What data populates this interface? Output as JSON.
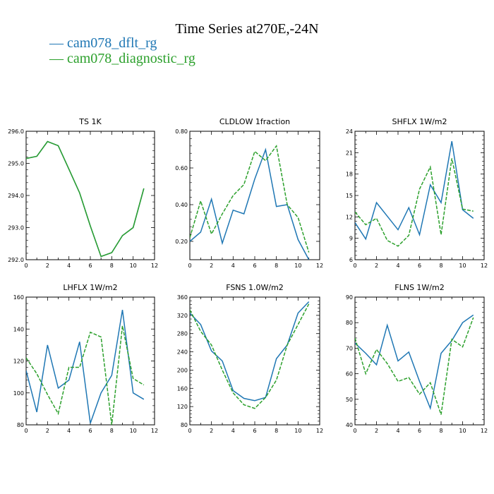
{
  "title": "Time Series at270E,-24N",
  "legend": [
    {
      "label": "— cam078_dflt_rg",
      "color": "#1f77b4"
    },
    {
      "label": "— cam078_diagnostic_rg",
      "color": "#2ca02c"
    }
  ],
  "chart_data": [
    {
      "type": "line",
      "title": "TS   1K",
      "x": [
        0,
        1,
        2,
        3,
        4,
        5,
        6,
        7,
        8,
        9,
        10,
        11
      ],
      "xlim": [
        0,
        12
      ],
      "xticks": [
        0,
        2,
        4,
        6,
        8,
        10,
        12
      ],
      "ylim": [
        292,
        296
      ],
      "yticks": [
        "292.0",
        "293.0",
        "294.0",
        "295.0",
        "296.0"
      ],
      "series": [
        {
          "name": "cam078_dflt_rg",
          "color": "#1f77b4",
          "dashed": false,
          "values": [
            295.15,
            295.22,
            295.68,
            295.55,
            294.82,
            294.08,
            293.05,
            292.1,
            292.22,
            292.75,
            293.0,
            294.22
          ]
        },
        {
          "name": "cam078_diagnostic_rg",
          "color": "#2ca02c",
          "dashed": false,
          "values": [
            295.15,
            295.22,
            295.68,
            295.55,
            294.82,
            294.08,
            293.05,
            292.1,
            292.22,
            292.75,
            293.0,
            294.22
          ]
        }
      ]
    },
    {
      "type": "line",
      "title": "CLDLOW   1fraction",
      "x": [
        0,
        1,
        2,
        3,
        4,
        5,
        6,
        7,
        8,
        9,
        10,
        11
      ],
      "xlim": [
        0,
        12
      ],
      "xticks": [
        0,
        2,
        4,
        6,
        8,
        10,
        12
      ],
      "ylim": [
        0.1,
        0.8
      ],
      "yticks": [
        "0.20",
        "0.40",
        "0.60",
        "0.80"
      ],
      "series": [
        {
          "name": "cam078_dflt_rg",
          "color": "#1f77b4",
          "dashed": false,
          "values": [
            0.2,
            0.25,
            0.43,
            0.19,
            0.37,
            0.35,
            0.54,
            0.7,
            0.39,
            0.4,
            0.21,
            0.1
          ]
        },
        {
          "name": "cam078_diagnostic_rg",
          "color": "#2ca02c",
          "dashed": true,
          "values": [
            0.22,
            0.42,
            0.24,
            0.35,
            0.45,
            0.51,
            0.69,
            0.64,
            0.72,
            0.4,
            0.33,
            0.14
          ]
        }
      ]
    },
    {
      "type": "line",
      "title": "SHFLX   1W/m2",
      "x": [
        0,
        1,
        2,
        3,
        4,
        5,
        6,
        7,
        8,
        9,
        10,
        11
      ],
      "xlim": [
        0,
        12
      ],
      "xticks": [
        0,
        2,
        4,
        6,
        8,
        10,
        12
      ],
      "ylim": [
        6,
        24
      ],
      "yticks": [
        "6",
        "9",
        "12",
        "15",
        "18",
        "21",
        "24"
      ],
      "series": [
        {
          "name": "cam078_dflt_rg",
          "color": "#1f77b4",
          "dashed": false,
          "values": [
            11.2,
            8.9,
            14.0,
            12.1,
            10.2,
            13.3,
            9.5,
            16.5,
            14.0,
            22.6,
            13.0,
            11.8
          ]
        },
        {
          "name": "cam078_diagnostic_rg",
          "color": "#2ca02c",
          "dashed": true,
          "values": [
            12.7,
            10.9,
            11.8,
            8.7,
            7.9,
            9.4,
            15.9,
            19.0,
            9.5,
            20.2,
            13.1,
            12.8
          ]
        }
      ]
    },
    {
      "type": "line",
      "title": "LHFLX   1W/m2",
      "x": [
        0,
        1,
        2,
        3,
        4,
        5,
        6,
        7,
        8,
        9,
        10,
        11
      ],
      "xlim": [
        0,
        12
      ],
      "xticks": [
        0,
        2,
        4,
        6,
        8,
        10,
        12
      ],
      "ylim": [
        80,
        160
      ],
      "yticks": [
        "80",
        "100",
        "120",
        "140",
        "160"
      ],
      "series": [
        {
          "name": "cam078_dflt_rg",
          "color": "#1f77b4",
          "dashed": false,
          "values": [
            114,
            88,
            130,
            103,
            108,
            132,
            81,
            100,
            111,
            152,
            100,
            96
          ]
        },
        {
          "name": "cam078_diagnostic_rg",
          "color": "#2ca02c",
          "dashed": true,
          "values": [
            122,
            112,
            99,
            87,
            116,
            116,
            138,
            135,
            80,
            142,
            109,
            105
          ]
        }
      ]
    },
    {
      "type": "line",
      "title": "FSNS   1.0W/m2",
      "x": [
        0,
        1,
        2,
        3,
        4,
        5,
        6,
        7,
        8,
        9,
        10,
        11
      ],
      "xlim": [
        0,
        12
      ],
      "xticks": [
        0,
        2,
        4,
        6,
        8,
        10,
        12
      ],
      "ylim": [
        80,
        360
      ],
      "yticks": [
        "80",
        "120",
        "160",
        "200",
        "240",
        "280",
        "320",
        "360"
      ],
      "series": [
        {
          "name": "cam078_dflt_rg",
          "color": "#1f77b4",
          "dashed": false,
          "values": [
            325,
            300,
            242,
            220,
            155,
            138,
            133,
            140,
            225,
            255,
            325,
            350
          ]
        },
        {
          "name": "cam078_diagnostic_rg",
          "color": "#2ca02c",
          "dashed": true,
          "values": [
            332,
            285,
            255,
            200,
            150,
            124,
            116,
            140,
            178,
            255,
            300,
            345
          ]
        }
      ]
    },
    {
      "type": "line",
      "title": "FLNS   1W/m2",
      "x": [
        0,
        1,
        2,
        3,
        4,
        5,
        6,
        7,
        8,
        9,
        10,
        11
      ],
      "xlim": [
        0,
        12
      ],
      "xticks": [
        0,
        2,
        4,
        6,
        8,
        10,
        12
      ],
      "ylim": [
        40,
        90
      ],
      "yticks": [
        "40",
        "50",
        "60",
        "70",
        "80",
        "90"
      ],
      "series": [
        {
          "name": "cam078_dflt_rg",
          "color": "#1f77b4",
          "dashed": false,
          "values": [
            72,
            68,
            63.5,
            79,
            65,
            68.5,
            57,
            46.5,
            68,
            73,
            80,
            83
          ]
        },
        {
          "name": "cam078_diagnostic_rg",
          "color": "#2ca02c",
          "dashed": true,
          "values": [
            74,
            60,
            69.5,
            64,
            57,
            58.5,
            52,
            56.5,
            44,
            73.5,
            70.5,
            82
          ]
        }
      ]
    }
  ]
}
